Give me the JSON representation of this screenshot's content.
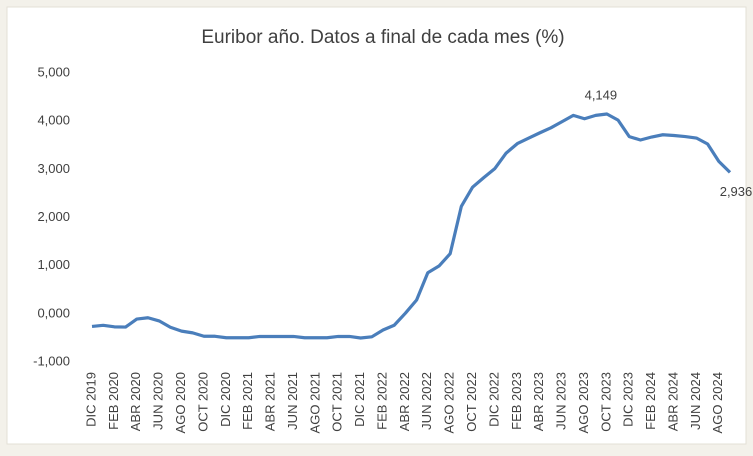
{
  "chart_data": {
    "type": "line",
    "title": "Euribor año.  Datos a final de cada mes (%)",
    "categories": [
      "DIC 2019",
      null,
      "FEB 2020",
      null,
      "ABR 2020",
      null,
      "JUN 2020",
      null,
      "AGO 2020",
      null,
      "OCT 2020",
      null,
      "DIC 2020",
      null,
      "FEB 2021",
      null,
      "ABR 2021",
      null,
      "JUN 2021",
      null,
      "AGO 2021",
      null,
      "OCT 2021",
      null,
      "DIC 2021",
      null,
      "FEB 2022",
      null,
      "ABR 2022",
      null,
      "JUN 2022",
      null,
      "AGO 2022",
      null,
      "OCT 2022",
      null,
      "DIC 2022",
      null,
      "FEB 2023",
      null,
      "ABR 2023",
      null,
      "JUN 2023",
      null,
      "AGO 2023",
      null,
      "OCT 2023",
      null,
      "DIC 2023",
      null,
      "FEB 2024",
      null,
      "ABR 2024",
      null,
      "JUN 2024",
      null,
      "AGO 2024",
      null
    ],
    "series": [
      {
        "name": "Euribor",
        "color": "#4a7ebb",
        "values": [
          -0.261,
          -0.238,
          -0.27,
          -0.275,
          -0.108,
          -0.081,
          -0.147,
          -0.279,
          -0.359,
          -0.395,
          -0.466,
          -0.466,
          -0.497,
          -0.497,
          -0.497,
          -0.47,
          -0.47,
          -0.47,
          -0.47,
          -0.497,
          -0.497,
          -0.497,
          -0.47,
          -0.47,
          -0.502,
          -0.477,
          -0.335,
          -0.237,
          0.013,
          0.287,
          0.852,
          0.992,
          1.249,
          2.233,
          2.629,
          2.828,
          3.018,
          3.337,
          3.534,
          3.647,
          3.757,
          3.862,
          3.99,
          4.12,
          4.05,
          4.12,
          4.149,
          4.022,
          3.679,
          3.609,
          3.671,
          3.718,
          3.703,
          3.68,
          3.65,
          3.526,
          3.166,
          2.936
        ],
        "value_labels": [
          null,
          null,
          null,
          null,
          null,
          null,
          null,
          null,
          null,
          null,
          null,
          null,
          null,
          null,
          null,
          null,
          null,
          null,
          null,
          null,
          null,
          null,
          null,
          null,
          null,
          null,
          null,
          null,
          null,
          null,
          null,
          null,
          null,
          null,
          null,
          null,
          null,
          null,
          null,
          null,
          null,
          null,
          null,
          null,
          null,
          null,
          "4,149",
          null,
          null,
          null,
          null,
          null,
          null,
          null,
          null,
          null,
          null,
          "2,936"
        ]
      }
    ],
    "ylim": [
      -1,
      5
    ],
    "yticks": [
      {
        "value": -1,
        "label": "-1,000"
      },
      {
        "value": 0,
        "label": "0,000"
      },
      {
        "value": 1,
        "label": "1,000"
      },
      {
        "value": 2,
        "label": "2,000"
      },
      {
        "value": 3,
        "label": "3,000"
      },
      {
        "value": 4,
        "label": "4,000"
      },
      {
        "value": 5,
        "label": "5,000"
      }
    ],
    "grid": false
  }
}
